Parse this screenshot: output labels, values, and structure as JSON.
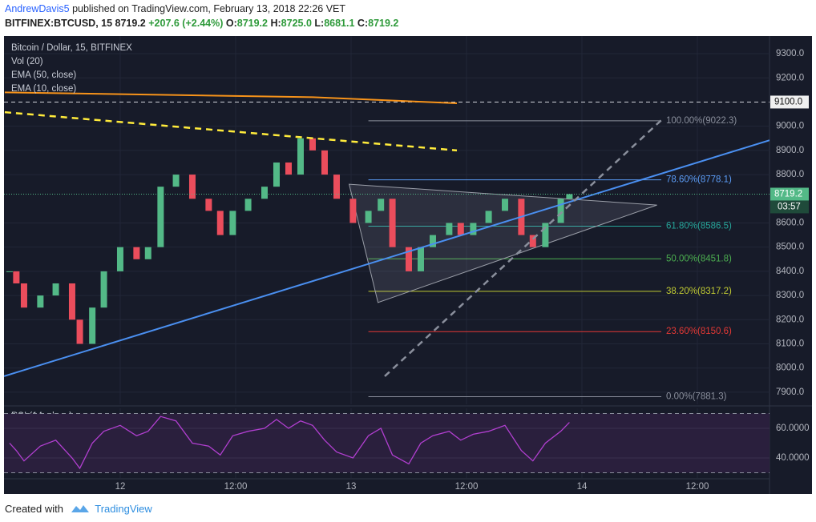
{
  "header": {
    "author": "AndrewDavis5",
    "published": "published on TradingView.com, February 13, 2018 22:26 VET",
    "symbol": "BITFINEX:BTCUSD, 15",
    "last": "8719.2",
    "change": "+207.6 (+2.44%)",
    "ohlc": [
      {
        "key": "O:",
        "value": "8719.2"
      },
      {
        "key": "H:",
        "value": "8725.0"
      },
      {
        "key": "L:",
        "value": "8681.1"
      },
      {
        "key": "C:",
        "value": "8719.2"
      }
    ]
  },
  "chart_data": {
    "type": "candlestick",
    "legend": [
      "Bitcoin / Dollar, 15, BITFINEX",
      "Vol (20)",
      "EMA (50, close)",
      "EMA (10, close)"
    ],
    "x": [
      -11.5,
      -10.8,
      -10,
      -8.3,
      -6.7,
      -5,
      -4.2,
      -2.9,
      -1.7,
      0,
      1.7,
      2.9,
      4.2,
      5.8,
      7.5,
      9.2,
      10.4,
      11.7,
      13.3,
      15,
      16.25,
      17.5,
      18.75,
      20,
      21.25,
      22.5,
      24.2,
      25.8,
      27.1,
      28.3,
      30,
      31.25,
      32.5,
      34.2,
      35.4,
      36.7,
      38.3,
      40,
      41.7,
      42.9,
      44.2,
      45.8,
      46.7
    ],
    "close": [
      8400,
      8350,
      8250,
      8300,
      8350,
      8200,
      8100,
      8250,
      8400,
      8500,
      8450,
      8500,
      8750,
      8800,
      8700,
      8650,
      8550,
      8650,
      8700,
      8750,
      8850,
      8800,
      8950,
      8900,
      8800,
      8700,
      8600,
      8650,
      8700,
      8500,
      8400,
      8500,
      8550,
      8600,
      8550,
      8600,
      8650,
      8700,
      8550,
      8500,
      8600,
      8700,
      8719.2
    ],
    "up_color": "#53b987",
    "down_color": "#eb4d5c",
    "xlim": [
      -12.08,
      67.5
    ],
    "xticks": [
      {
        "value": 0,
        "label": "12"
      },
      {
        "value": 12,
        "label": "12:00"
      },
      {
        "value": 24,
        "label": "13"
      },
      {
        "value": 36,
        "label": "12:00"
      },
      {
        "value": 48,
        "label": "14"
      },
      {
        "value": 60,
        "label": "12:00"
      }
    ],
    "ylim": [
      7850,
      9373
    ],
    "yticks": [
      {
        "value": 9300,
        "label": "9300.0"
      },
      {
        "value": 9200,
        "label": "9200.0"
      },
      {
        "value": 9000,
        "label": "9000.0"
      },
      {
        "value": 8900,
        "label": "8900.0"
      },
      {
        "value": 8800,
        "label": "8800.0"
      },
      {
        "value": 8600,
        "label": "8600.0"
      },
      {
        "value": 8500,
        "label": "8500.0"
      },
      {
        "value": 8400,
        "label": "8400.0"
      },
      {
        "value": 8300,
        "label": "8300.0"
      },
      {
        "value": 8200,
        "label": "8200.0"
      },
      {
        "value": 8100,
        "label": "8100.0"
      },
      {
        "value": 8000,
        "label": "8000.0"
      },
      {
        "value": 7900,
        "label": "7900.0"
      }
    ],
    "grid": true,
    "level": {
      "value": 9100,
      "label": "9100.0"
    },
    "last_price": {
      "value": 8719.2,
      "label": "8719.2",
      "countdown": "03:57"
    },
    "lines": [
      {
        "color": "#f7931a",
        "dash": false,
        "x": [
          -12,
          20,
          35
        ],
        "y": [
          9140,
          9120,
          9095
        ]
      },
      {
        "color": "#ffeb3b",
        "dash": true,
        "x": [
          -12,
          35
        ],
        "y": [
          9058,
          8900
        ]
      },
      {
        "color": "#4a8ff0",
        "dash": false,
        "x": [
          -12.08,
          67.5
        ],
        "y": [
          7966,
          8942
        ]
      },
      {
        "color": "#8a8f9c",
        "dash": true,
        "x": [
          27.5,
          56.25
        ],
        "y": [
          7966,
          9025
        ]
      }
    ],
    "triangle": {
      "x": [
        23.8,
        55.8,
        26.8
      ],
      "y": [
        8760,
        8674,
        8271
      ]
    },
    "fib": {
      "x": [
        25.8,
        56.25
      ],
      "levels": [
        {
          "value": 9022.3,
          "text": "100.00%(9022.3)",
          "color": "#8a8f9c"
        },
        {
          "value": 8778.1,
          "text": "78.60%(8778.1)",
          "color": "#5b9cf6"
        },
        {
          "value": 8586.5,
          "text": "61.80%(8586.5)",
          "color": "#26a69a"
        },
        {
          "value": 8451.8,
          "text": "50.00%(8451.8)",
          "color": "#4caf50"
        },
        {
          "value": 8317.2,
          "text": "38.20%(8317.2)",
          "color": "#c0ca33"
        },
        {
          "value": 8150.6,
          "text": "23.60%(8150.6)",
          "color": "#e53935"
        },
        {
          "value": 7881.3,
          "text": "0.00%(7881.3)",
          "color": "#8a8f9c"
        }
      ]
    },
    "rsi": {
      "title": "RSI (14, close)",
      "color": "#b13fd0",
      "values": [
        50,
        45,
        38,
        48,
        52,
        40,
        33,
        50,
        58,
        62,
        55,
        58,
        68,
        65,
        50,
        48,
        42,
        55,
        58,
        60,
        66,
        60,
        65,
        62,
        52,
        44,
        40,
        55,
        60,
        42,
        36,
        50,
        55,
        58,
        52,
        56,
        58,
        62,
        45,
        38,
        50,
        58,
        64
      ],
      "ylim": [
        26.5,
        73.5
      ],
      "bands": [
        30,
        70
      ],
      "yticks": [
        {
          "value": 60,
          "label": "60.0000"
        },
        {
          "value": 40,
          "label": "40.0000"
        }
      ]
    }
  },
  "footer": {
    "text": "Created with",
    "brand": "TradingView"
  }
}
